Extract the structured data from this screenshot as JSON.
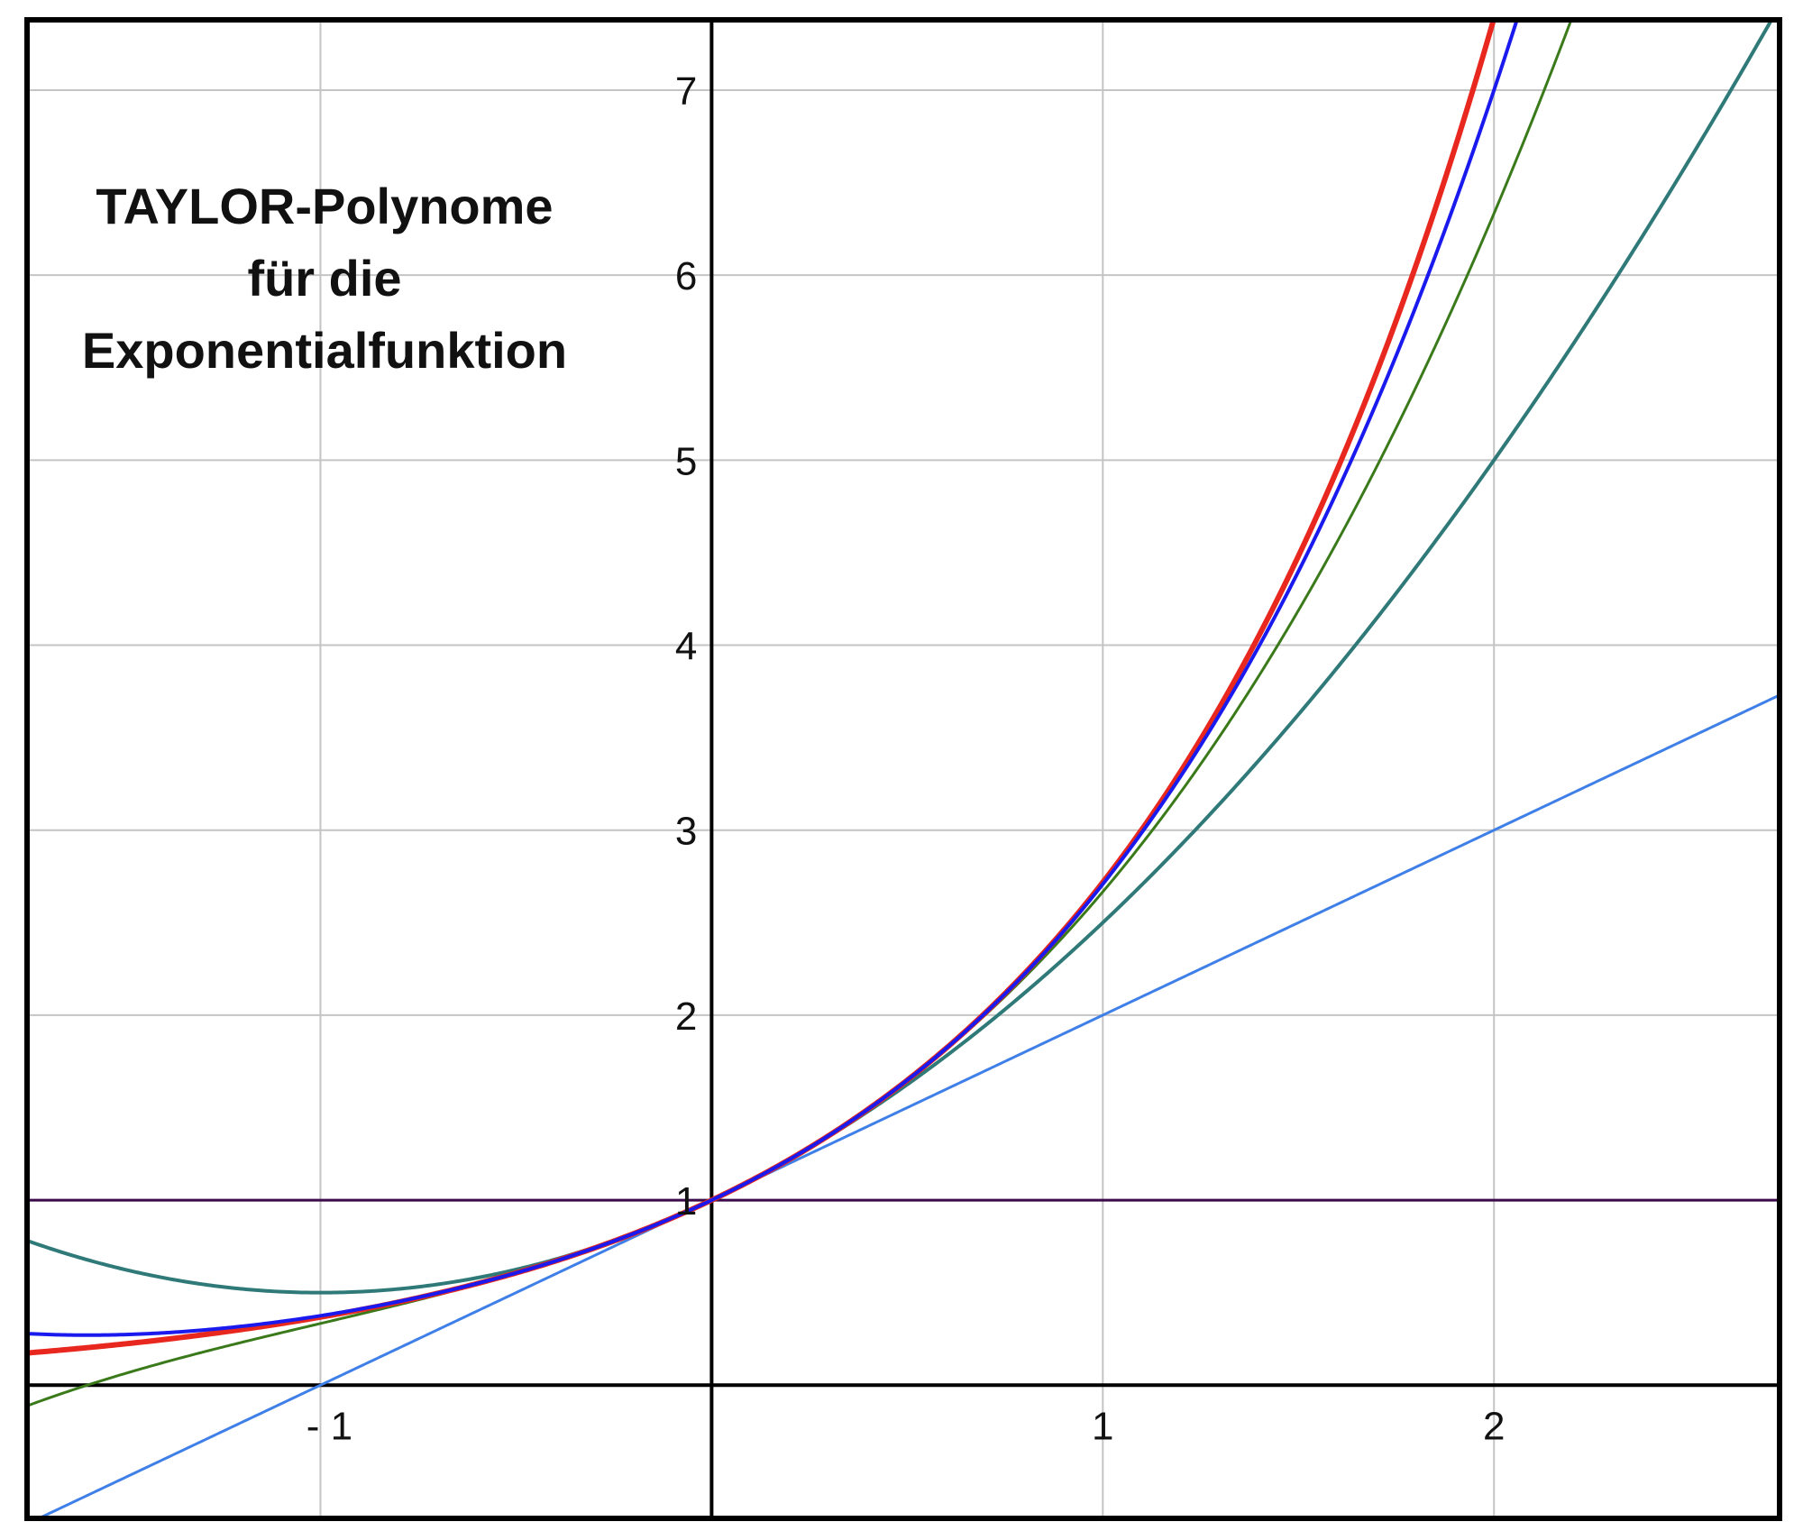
{
  "chart_data": {
    "type": "line",
    "title_lines": [
      "TAYLOR-Polynome",
      "für die",
      "Exponentialfunktion"
    ],
    "xlim": [
      -1.75,
      2.73
    ],
    "ylim": [
      -0.72,
      7.38
    ],
    "xticks": [
      -1,
      1,
      2
    ],
    "xtick_labels": [
      "- 1",
      "1",
      "2"
    ],
    "yticks": [
      1,
      2,
      3,
      4,
      5,
      6,
      7
    ],
    "ytick_labels": [
      "1",
      "2",
      "3",
      "4",
      "5",
      "6",
      "7"
    ],
    "x_grid": [
      -1,
      1,
      2
    ],
    "y_grid": [
      1,
      2,
      3,
      4,
      5,
      6,
      7
    ],
    "grid": true,
    "legend": "none",
    "series": [
      {
        "kind": "taylor",
        "degree": 0,
        "color": "#3a0a4a",
        "width": 3
      },
      {
        "kind": "taylor",
        "degree": 1,
        "color": "#3f7fe8",
        "width": 3
      },
      {
        "kind": "taylor",
        "degree": 2,
        "color": "#2f7a78",
        "width": 4
      },
      {
        "kind": "taylor",
        "degree": 3,
        "color": "#3a7a1a",
        "width": 3
      },
      {
        "kind": "exp",
        "degree": null,
        "color": "#e8281e",
        "width": 6
      },
      {
        "kind": "taylor",
        "degree": 4,
        "color": "#1a1aee",
        "width": 4
      }
    ]
  }
}
